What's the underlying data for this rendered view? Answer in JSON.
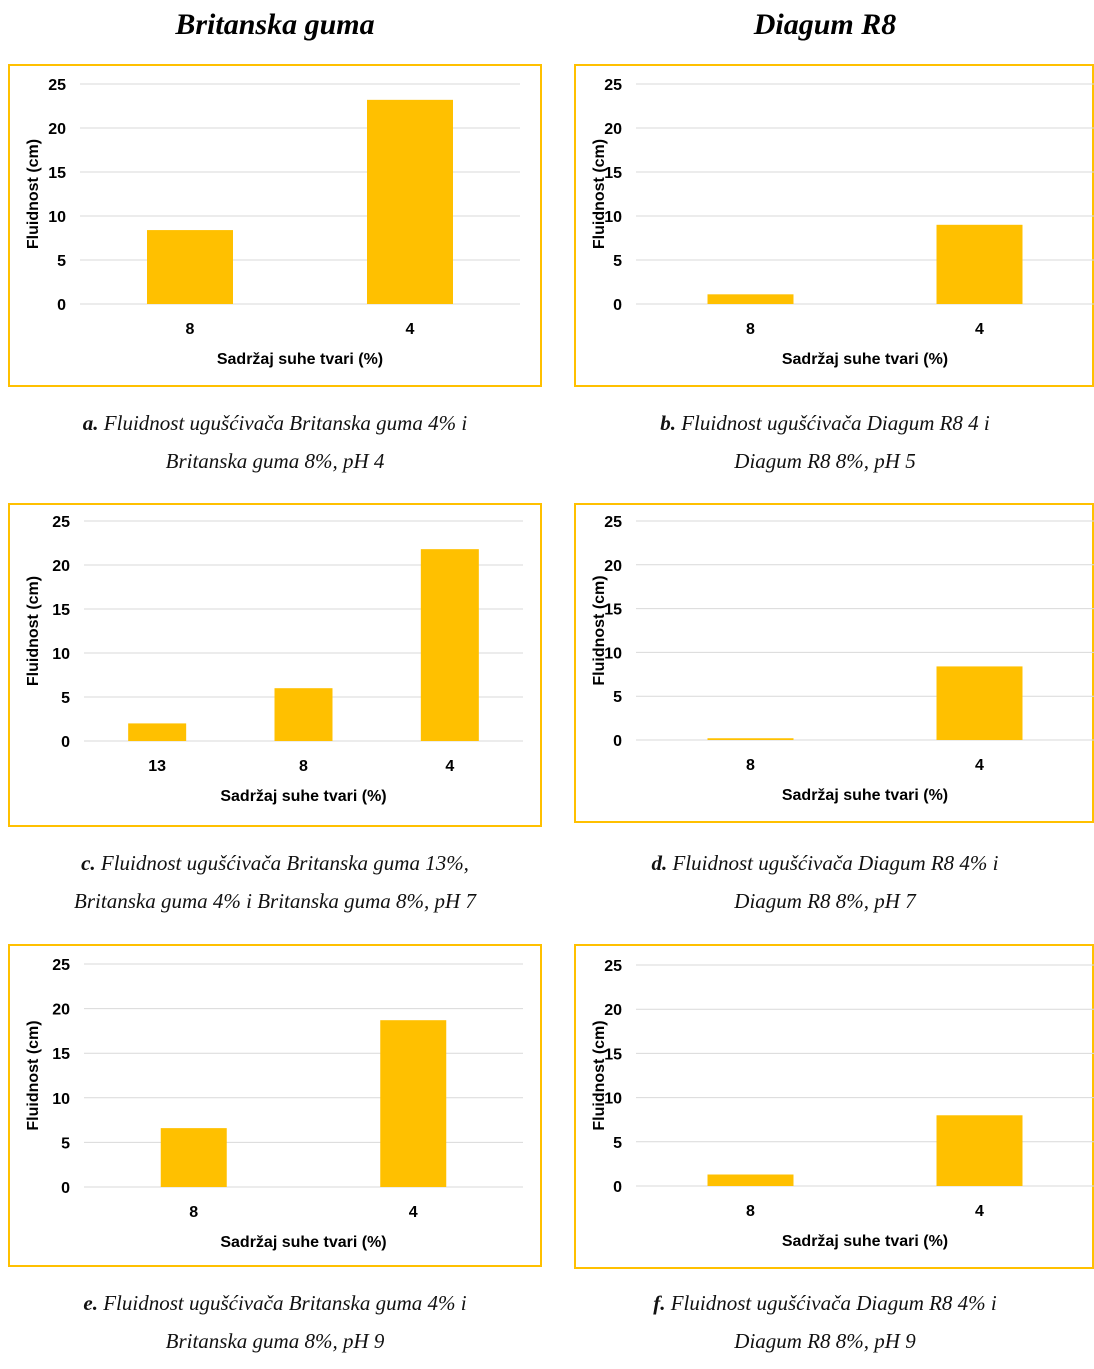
{
  "headers": {
    "left": "Britanska guma",
    "right": "Diagum R8"
  },
  "accent_color": "#FFC000",
  "bar_color": "#FFC000",
  "chart_data": [
    {
      "panel": "a",
      "type": "bar",
      "categories": [
        "8",
        "4"
      ],
      "values": [
        8.4,
        23.2
      ],
      "xlabel": "Sadržaj suhe tvari (%)",
      "ylabel": "Fluidnost (cm)",
      "ylim": [
        0,
        25
      ],
      "yticks": [
        0,
        5,
        10,
        15,
        20,
        25
      ],
      "grid": true
    },
    {
      "panel": "b",
      "type": "bar",
      "categories": [
        "8",
        "4"
      ],
      "values": [
        1.1,
        9.0
      ],
      "xlabel": "Sadržaj suhe tvari (%)",
      "ylabel": "Fluidnost (cm)",
      "ylim": [
        0,
        25
      ],
      "yticks": [
        0,
        5,
        10,
        15,
        20,
        25
      ],
      "grid": true
    },
    {
      "panel": "c",
      "type": "bar",
      "categories": [
        "13",
        "8",
        "4"
      ],
      "values": [
        2.0,
        6.0,
        21.8
      ],
      "xlabel": "Sadržaj suhe tvari (%)",
      "ylabel": "Fluidnost (cm)",
      "ylim": [
        0,
        25
      ],
      "yticks": [
        0,
        5,
        10,
        15,
        20,
        25
      ],
      "grid": true
    },
    {
      "panel": "d",
      "type": "bar",
      "categories": [
        "8",
        "4"
      ],
      "values": [
        0.2,
        8.4
      ],
      "xlabel": "Sadržaj suhe tvari (%)",
      "ylabel": "Fluidnost (cm)",
      "ylim": [
        0,
        25
      ],
      "yticks": [
        0,
        5,
        10,
        15,
        20,
        25
      ],
      "grid": true
    },
    {
      "panel": "e",
      "type": "bar",
      "categories": [
        "8",
        "4"
      ],
      "values": [
        6.6,
        18.7
      ],
      "xlabel": "Sadržaj suhe tvari (%)",
      "ylabel": "Fluidnost (cm)",
      "ylim": [
        0,
        25
      ],
      "yticks": [
        0,
        5,
        10,
        15,
        20,
        25
      ],
      "grid": true
    },
    {
      "panel": "f",
      "type": "bar",
      "categories": [
        "8",
        "4"
      ],
      "values": [
        1.3,
        8.0
      ],
      "xlabel": "Sadržaj suhe tvari (%)",
      "ylabel": "Fluidnost (cm)",
      "ylim": [
        0,
        25
      ],
      "yticks": [
        0,
        5,
        10,
        15,
        20,
        25
      ],
      "grid": true
    }
  ],
  "captions": [
    {
      "letter": "a.",
      "line1": " Fluidnost ugušćivača Britanska guma 4% i",
      "line2": "Britanska guma 8%,  pH 4"
    },
    {
      "letter": "b.",
      "line1": " Fluidnost ugušćivača Diagum R8 4 i",
      "line2": "Diagum R8 8%, pH 5"
    },
    {
      "letter": "c.",
      "line1": " Fluidnost ugušćivača  Britanska guma 13%,",
      "line2": "Britanska guma 4% i Britanska guma 8%, pH 7"
    },
    {
      "letter": "d.",
      "line1": " Fluidnost ugušćivača Diagum R8 4% i",
      "line2": "Diagum R8 8%, pH 7"
    },
    {
      "letter": "e.",
      "line1": " Fluidnost ugušćivača Britanska guma 4% i",
      "line2": "Britanska guma 8%, pH 9"
    },
    {
      "letter": "f.",
      "line1": " Fluidnost ugušćivača Diagum R8 4% i",
      "line2": "Diagum R8 8%, pH 9"
    }
  ]
}
